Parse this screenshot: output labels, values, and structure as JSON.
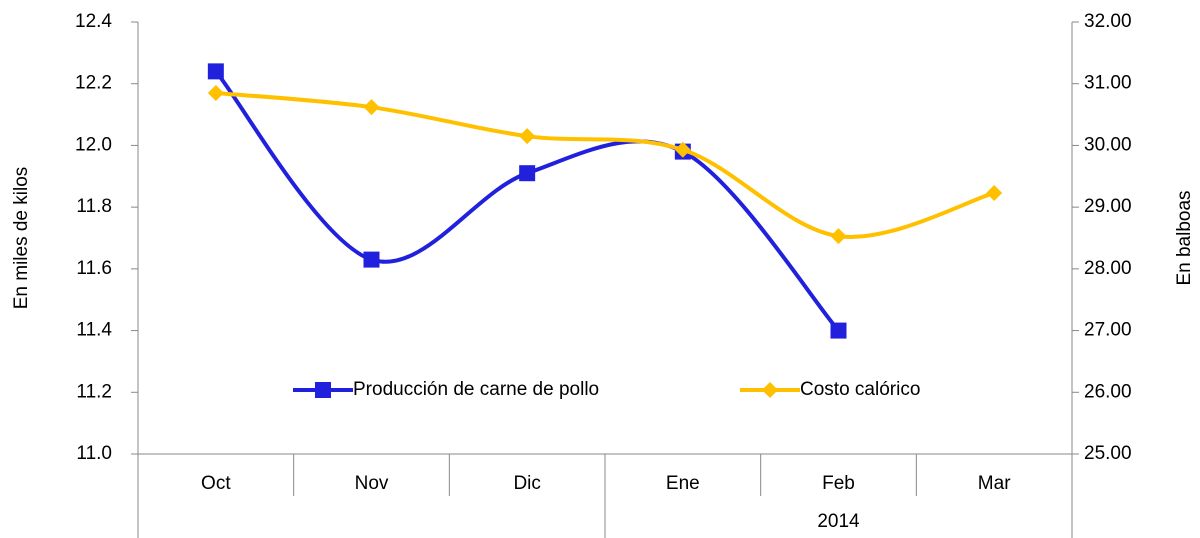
{
  "chart_data": {
    "type": "line",
    "y_label": "En miles de kilos",
    "y2_label": "En balboas",
    "categories": [
      "Oct",
      "Nov",
      "Dic",
      "Ene",
      "Feb",
      "Mar"
    ],
    "category_groups": [
      {
        "label": "2014",
        "span": [
          3,
          5
        ]
      }
    ],
    "series": [
      {
        "name": "Producción de carne de pollo",
        "color": "#2121dd",
        "marker": "square",
        "values": [
          12.24,
          11.63,
          11.91,
          11.98,
          11.4,
          null
        ]
      },
      {
        "name": "Costo calórico",
        "color": "#ffc000",
        "marker": "diamond",
        "axis": "y2",
        "values": [
          30.85,
          30.62,
          30.15,
          29.93,
          28.53,
          29.23
        ]
      }
    ],
    "ylim": [
      11.0,
      12.4
    ],
    "yticks": [
      {
        "value": 11.0,
        "label": "11.0"
      },
      11.2,
      11.4,
      11.6,
      11.8,
      {
        "value": 12.0,
        "label": "12.0"
      },
      12.2,
      12.4
    ],
    "y2lim": [
      25,
      32
    ],
    "y2ticks": [
      {
        "value": 25,
        "label": "25.00"
      },
      {
        "value": 26,
        "label": "26.00"
      },
      {
        "value": 27,
        "label": "27.00"
      },
      {
        "value": 28,
        "label": "28.00"
      },
      {
        "value": 29,
        "label": "29.00"
      },
      {
        "value": 30,
        "label": "30.00"
      },
      {
        "value": 31,
        "label": "31.00"
      },
      {
        "value": 32,
        "label": "32.00"
      }
    ],
    "smooth": true,
    "legend": "inside-bottom"
  }
}
